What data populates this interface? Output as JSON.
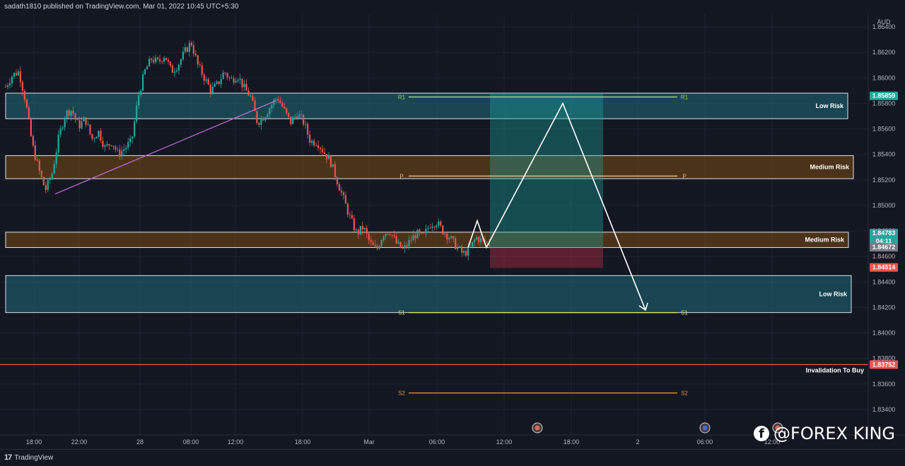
{
  "header": {
    "publisher": "sadath1810 published on TradingView.com, Mar 01, 2022 10:45 UTC+5:30"
  },
  "footer": {
    "brand": "TradingView",
    "watermark": "@FOREX KING"
  },
  "chart_data": {
    "type": "candlestick",
    "currency": "AUD",
    "y_axis_ticks": [
      1.864,
      1.862,
      1.86,
      1.858,
      1.856,
      1.854,
      1.852,
      1.85,
      1.848,
      1.846,
      1.844,
      1.842,
      1.84,
      1.838,
      1.836,
      1.834
    ],
    "y_tick_labels": [
      "1.86400",
      "1.86200",
      "1.86000",
      "1.85800",
      "1.85600",
      "1.85400",
      "1.85200",
      "1.85000",
      "1.84800",
      "1.84600",
      "1.84400",
      "1.84200",
      "1.84000",
      "1.83800",
      "1.83600",
      "1.83400"
    ],
    "x_tick_labels": [
      "18:00",
      "22:00",
      "28",
      "08:00",
      "12:00",
      "18:00",
      "Mar",
      "06:00",
      "12:00",
      "18:00",
      "2",
      "06:00",
      "12:00"
    ],
    "zones": [
      {
        "label": "Low Risk",
        "top": 1.8588,
        "bottom": 1.8568,
        "color": "#1e6b78"
      },
      {
        "label": "Medium Risk",
        "top": 1.8539,
        "bottom": 1.8521,
        "color": "#7a4a12"
      },
      {
        "label": "Medium Risk",
        "top": 1.8479,
        "bottom": 1.8467,
        "color": "#7a4a12"
      },
      {
        "label": "Low Risk",
        "top": 1.8445,
        "bottom": 1.8416,
        "color": "#1e6b78"
      }
    ],
    "pivots": [
      {
        "label": "R1",
        "value": 1.8585,
        "color": "#a5d65c"
      },
      {
        "label": "P",
        "value": 1.8523,
        "color": "#e6b887"
      },
      {
        "label": "S1",
        "value": 1.8416,
        "color": "#d4e05a"
      },
      {
        "label": "S2",
        "value": 1.8353,
        "color": "#e0952e"
      }
    ],
    "invalidation": {
      "label": "Invalidation To Buy",
      "value": 1.83752
    },
    "price_badges": [
      {
        "text": "1.85859",
        "value": 1.85859,
        "bg": "#26a69a",
        "fg": "#ffffff"
      },
      {
        "text": "1.84783",
        "value": 1.84783,
        "bg": "#26a69a",
        "fg": "#ffffff"
      },
      {
        "text": "04:11",
        "value": 1.8472,
        "bg": "#26a69a",
        "fg": "#ffffff"
      },
      {
        "text": "1.84672",
        "value": 1.84672,
        "bg": "#787b86",
        "fg": "#ffffff"
      },
      {
        "text": "1.84514",
        "value": 1.84514,
        "bg": "#ef5350",
        "fg": "#ffffff"
      },
      {
        "text": "1.83752",
        "value": 1.83752,
        "bg": "#ef5350",
        "fg": "#ffffff"
      }
    ],
    "position": {
      "entry": 1.8467,
      "target": 1.8588,
      "stop": 1.8451
    },
    "projection": [
      1.8467,
      1.8488,
      1.8467,
      1.858,
      1.8418
    ],
    "trendline": [
      1.8509,
      1.8582
    ],
    "price_path": [
      1.8593,
      1.8602,
      1.8605,
      1.8582,
      1.8548,
      1.8528,
      1.8512,
      1.8525,
      1.8553,
      1.8572,
      1.8575,
      1.8562,
      1.8568,
      1.8552,
      1.8558,
      1.8545,
      1.855,
      1.854,
      1.8545,
      1.855,
      1.8585,
      1.8605,
      1.8615,
      1.8612,
      1.8618,
      1.8605,
      1.861,
      1.862,
      1.8628,
      1.861,
      1.86,
      1.859,
      1.8595,
      1.8605,
      1.8598,
      1.8602,
      1.8592,
      1.8585,
      1.8565,
      1.857,
      1.8578,
      1.8585,
      1.8575,
      1.8565,
      1.8572,
      1.8565,
      1.855,
      1.855,
      1.8542,
      1.8535,
      1.852,
      1.8505,
      1.849,
      1.8478,
      1.8483,
      1.847,
      1.8465,
      1.8478,
      1.848,
      1.847,
      1.8465,
      1.8472,
      1.8478,
      1.8475,
      1.8485,
      1.8487,
      1.848,
      1.8475,
      1.8468,
      1.8462,
      1.8465,
      1.8475,
      1.8472,
      1.847
    ],
    "events": [
      "event-icon",
      "flag-icon",
      "event-icon"
    ]
  }
}
